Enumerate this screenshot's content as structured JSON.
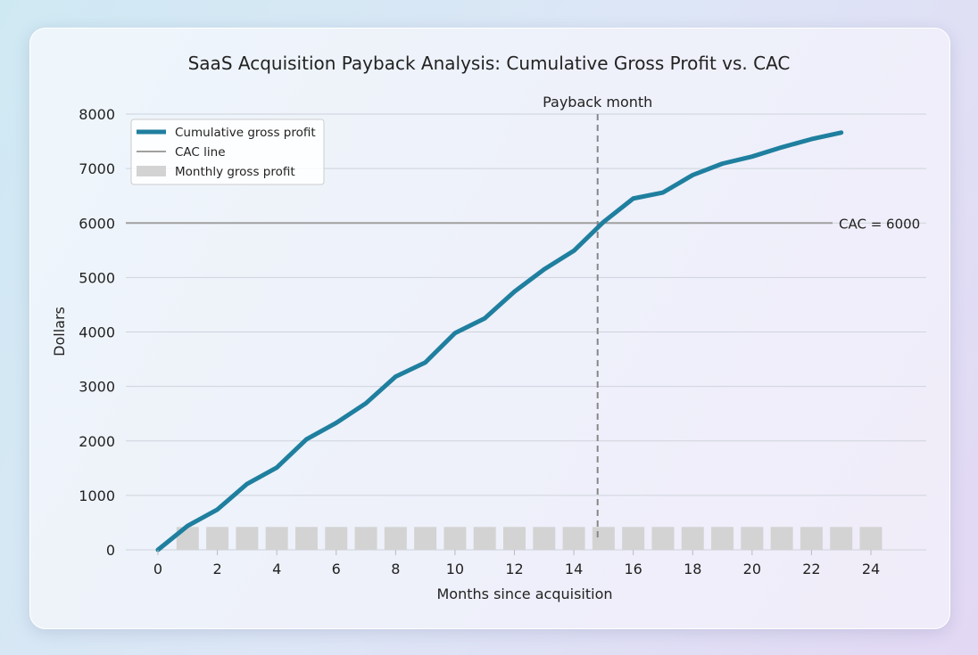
{
  "chart_data": {
    "type": "line",
    "title": "SaaS Acquisition Payback Analysis: Cumulative Gross Profit vs. CAC",
    "xlabel": "Months since acquisition",
    "ylabel": "Dollars",
    "xlim": [
      -1,
      25.8
    ],
    "ylim": [
      0,
      8000
    ],
    "xticks": [
      0,
      2,
      4,
      6,
      8,
      10,
      12,
      14,
      16,
      18,
      20,
      22,
      24
    ],
    "yticks": [
      0,
      1000,
      2000,
      3000,
      4000,
      5000,
      6000,
      7000,
      8000
    ],
    "grid": "horizontal",
    "legend_position": "top-left",
    "series": [
      {
        "name": "Cumulative gross profit",
        "kind": "line",
        "color": "#1f7f9f",
        "x": [
          0,
          1,
          2,
          3,
          4,
          5,
          6,
          7,
          8,
          9,
          10,
          11,
          12,
          13,
          14,
          15,
          16,
          17,
          18,
          19,
          20,
          21,
          22,
          23
        ],
        "values": [
          0,
          440,
          740,
          1210,
          1510,
          2030,
          2330,
          2690,
          3180,
          3440,
          3980,
          4250,
          4740,
          5150,
          5490,
          6020,
          6450,
          6560,
          6880,
          7090,
          7220,
          7390,
          7540,
          7660
        ]
      },
      {
        "name": "CAC line",
        "kind": "hline",
        "color": "#a0a0a0",
        "value": 6000
      },
      {
        "name": "Monthly gross profit",
        "kind": "bar",
        "color": "#d3d3d3",
        "x": [
          1,
          2,
          3,
          4,
          5,
          6,
          7,
          8,
          9,
          10,
          11,
          12,
          13,
          14,
          15,
          16,
          17,
          18,
          19,
          20,
          21,
          22,
          23,
          24
        ],
        "values": [
          420,
          420,
          420,
          420,
          420,
          420,
          420,
          420,
          420,
          420,
          420,
          420,
          420,
          420,
          420,
          420,
          420,
          420,
          420,
          420,
          420,
          420,
          420,
          420
        ]
      }
    ],
    "annotations": {
      "cac_label": "CAC = 6000",
      "payback_label": "Payback month",
      "payback_month": 14.8
    }
  }
}
